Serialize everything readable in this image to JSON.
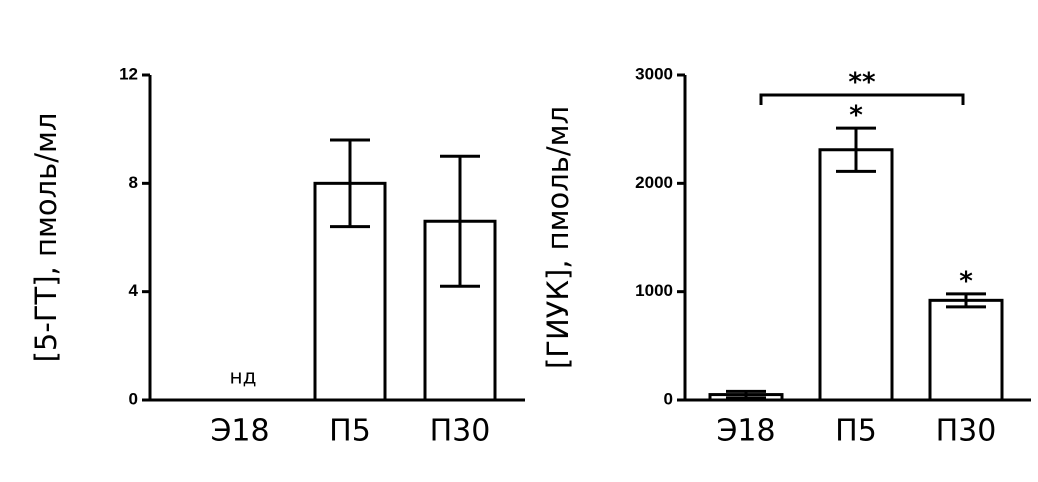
{
  "chart_data": [
    {
      "type": "bar",
      "y_label": "[5-ГТ], пмоль/мл",
      "categories": [
        "Э18",
        "П5",
        "П30"
      ],
      "values": [
        null,
        8,
        6.6
      ],
      "errors": [
        null,
        1.6,
        2.4
      ],
      "value_labels": [
        "нд",
        null,
        null
      ],
      "color": "#ffffff",
      "ylim": [
        0,
        12
      ],
      "yticks": [
        0,
        4,
        8,
        12
      ]
    },
    {
      "type": "bar",
      "y_label": "[ГИУК], пмоль/мл",
      "categories": [
        "Э18",
        "П5",
        "П30"
      ],
      "values": [
        50,
        2310,
        920
      ],
      "errors": [
        30,
        200,
        60
      ],
      "significance": [
        null,
        "*",
        "*"
      ],
      "bracket_label": "**",
      "color": "#ffffff",
      "ylim": [
        0,
        3000
      ],
      "yticks": [
        0,
        1000,
        2000,
        3000
      ]
    }
  ]
}
